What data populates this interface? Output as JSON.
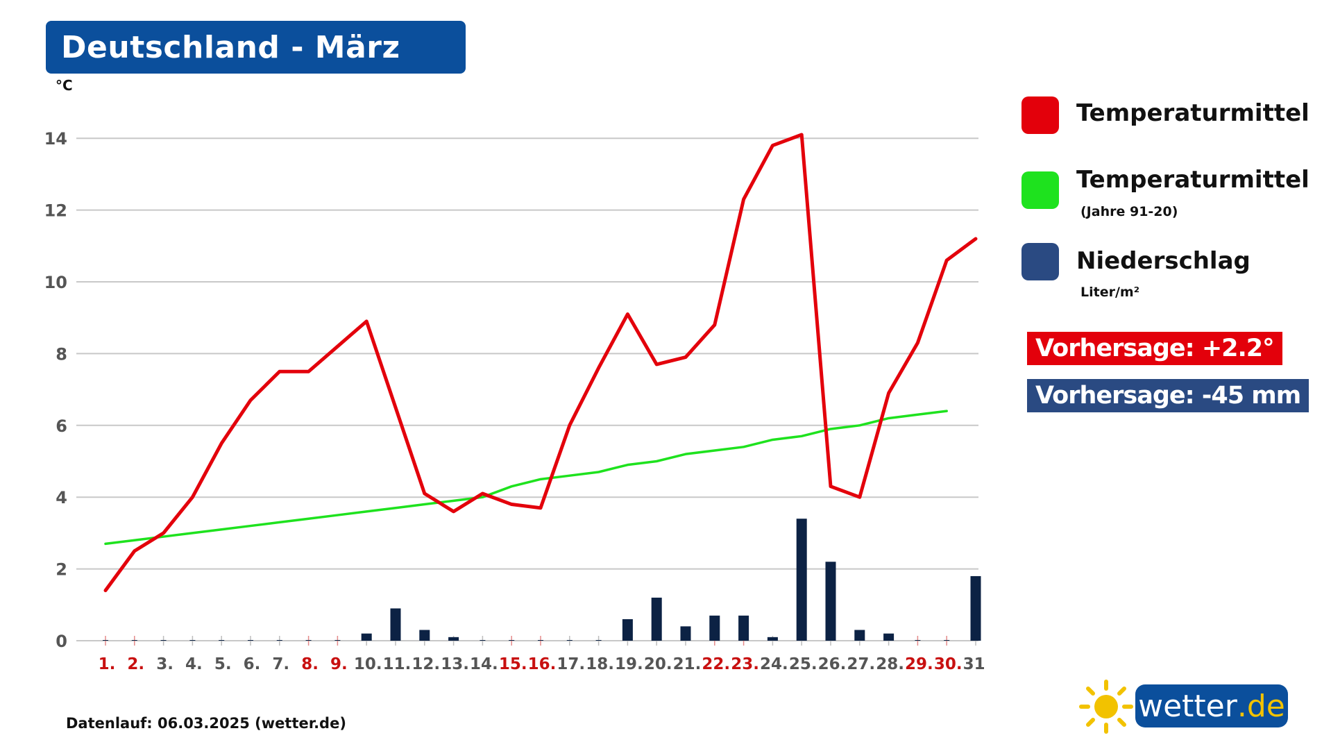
{
  "title": "Deutschland - März",
  "colors": {
    "title_bg": "#0b4f9c",
    "temperature": "#e3000b",
    "normal": "#1ee21e",
    "precipitation": "#0c2244",
    "precip_legend": "#2a4a82",
    "weekend_label": "#c81010",
    "weekday_label": "#555555",
    "grid": "#c8c8c8"
  },
  "legend": {
    "items": [
      {
        "label": "Temperaturmittel",
        "sub": "",
        "color": "#e3000b"
      },
      {
        "label": "Temperaturmittel",
        "sub": "(Jahre 91-20)",
        "color": "#1ee21e"
      },
      {
        "label": "Niederschlag",
        "sub": "Liter/m²",
        "color": "#2a4a82"
      }
    ]
  },
  "forecast": {
    "temperature": "Vorhersage: +2.2°",
    "temperature_color": "#e3000b",
    "precipitation": "Vorhersage: -45 mm",
    "precipitation_color": "#2a4a82"
  },
  "footer": "Datenlauf: 06.03.2025 (wetter.de)",
  "logo": {
    "text": "wetter",
    "tld": ".de",
    "icon": "sun-icon"
  },
  "chart_data": {
    "type": "line",
    "ylabel": "°C",
    "ylim": [
      0,
      14
    ],
    "yticks": [
      0,
      2,
      4,
      6,
      8,
      10,
      12,
      14
    ],
    "grid": true,
    "legend_position": "right",
    "categories": [
      "1.",
      "2.",
      "3.",
      "4.",
      "5.",
      "6.",
      "7.",
      "8.",
      "9.",
      "10.",
      "11.",
      "12.",
      "13.",
      "14.",
      "15.",
      "16.",
      "17.",
      "18.",
      "19.",
      "20.",
      "21.",
      "22.",
      "23.",
      "24.",
      "25.",
      "26.",
      "27.",
      "28.",
      "29.",
      "30.",
      "31."
    ],
    "weekend_days": [
      1,
      2,
      8,
      9,
      15,
      16,
      22,
      23,
      29,
      30
    ],
    "series": [
      {
        "name": "Temperaturmittel",
        "type": "line",
        "color": "#e3000b",
        "values": [
          1.4,
          2.5,
          3.0,
          4.0,
          5.5,
          6.7,
          7.5,
          7.5,
          8.2,
          8.9,
          6.5,
          4.1,
          3.6,
          4.1,
          3.8,
          3.7,
          6.0,
          7.6,
          9.1,
          7.7,
          7.9,
          8.8,
          12.3,
          13.8,
          14.1,
          4.3,
          4.0,
          6.9,
          8.3,
          10.6,
          11.2
        ]
      },
      {
        "name": "Temperaturmittel (Jahre 91-20)",
        "type": "line",
        "color": "#1ee21e",
        "values": [
          2.7,
          2.8,
          2.9,
          3.0,
          3.1,
          3.2,
          3.3,
          3.4,
          3.5,
          3.6,
          3.7,
          3.8,
          3.9,
          4.0,
          4.3,
          4.5,
          4.6,
          4.7,
          4.9,
          5.0,
          5.2,
          5.3,
          5.4,
          5.6,
          5.7,
          5.9,
          6.0,
          6.2,
          6.3,
          6.4,
          null
        ]
      },
      {
        "name": "Niederschlag",
        "type": "bar",
        "color": "#0c2244",
        "values": [
          0,
          0,
          0,
          0,
          0,
          0,
          0,
          0,
          0,
          0.2,
          0.9,
          0.3,
          0.1,
          0,
          0,
          0,
          0,
          0,
          0.6,
          1.2,
          0.4,
          0.7,
          0.7,
          0.1,
          3.4,
          2.2,
          0.3,
          0.2,
          0,
          0,
          1.8
        ]
      }
    ]
  }
}
